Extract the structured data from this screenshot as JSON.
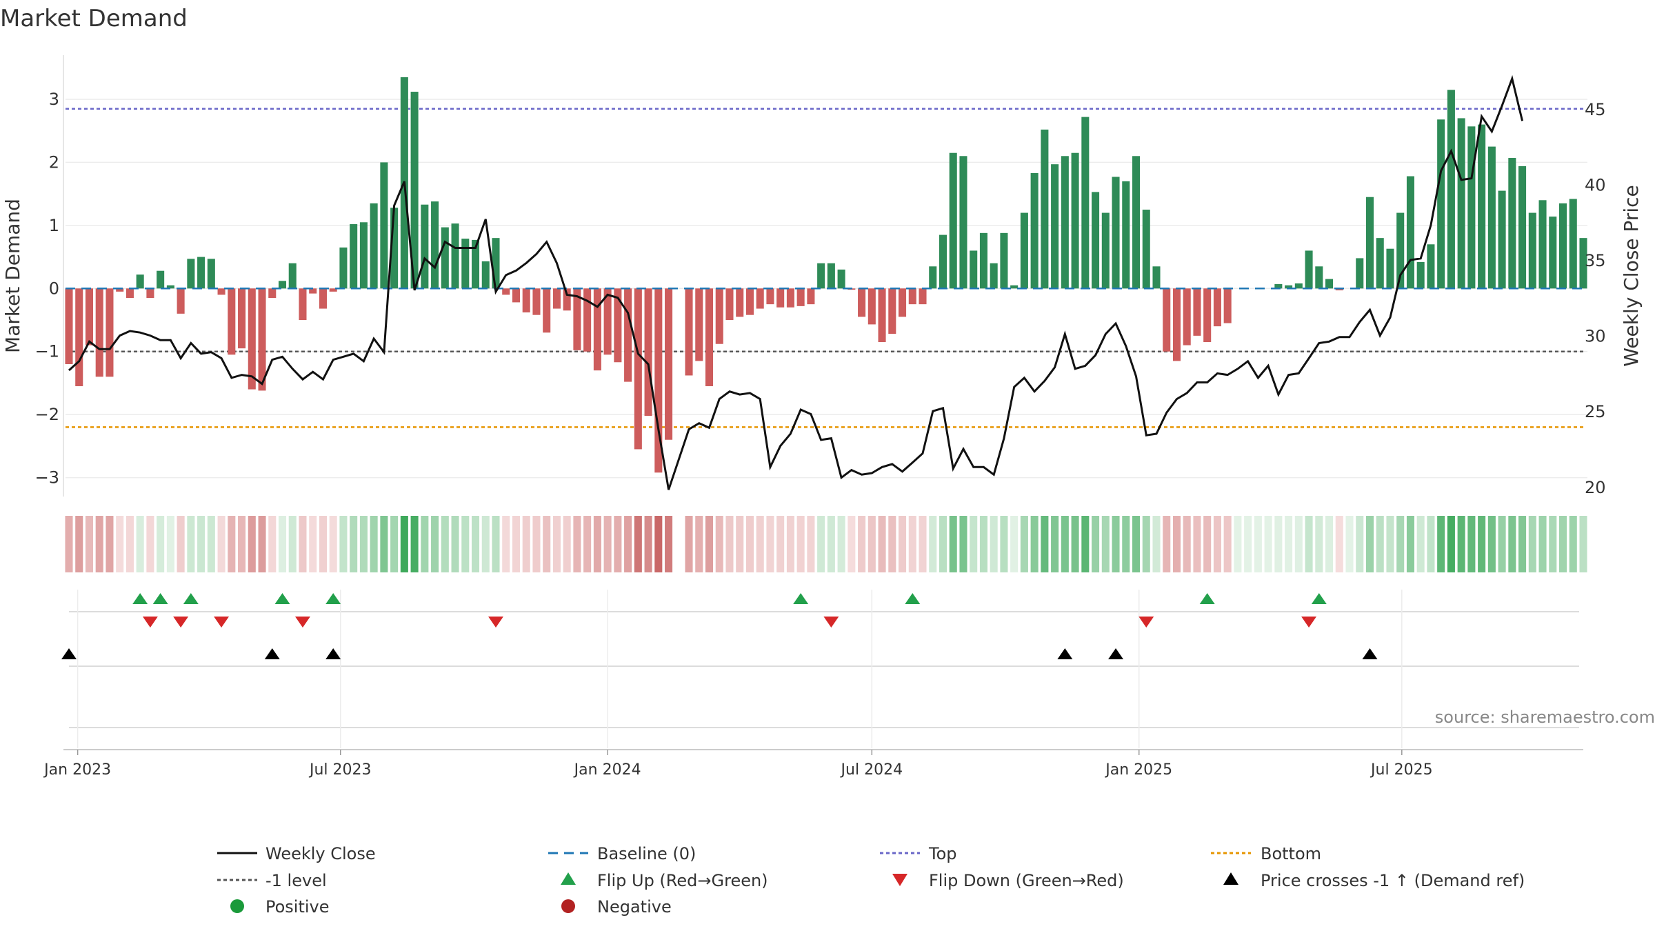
{
  "title": "Market Demand",
  "source": "source: sharemaestro.com",
  "colors": {
    "positive": "#2e8b57",
    "negative": "#cd5c5c",
    "close": "#111111",
    "baseline": "#1f77b4",
    "top": "#6a67c8",
    "minus1": "#555555",
    "bottom": "#e69500",
    "flip_up": "#22a04b",
    "flip_down": "#d62728",
    "cross": "#000000",
    "legend_positive": "#1a9a3a",
    "legend_negative": "#b22222"
  },
  "chart_data": {
    "type": "bar",
    "title": "Market Demand",
    "ylabel": "Market Demand",
    "y2label": "Weekly Close Price",
    "ylim": [
      -3.3,
      3.7
    ],
    "y2lim": [
      19.35,
      48.55
    ],
    "yticks": [
      3,
      2,
      1,
      0,
      -1,
      -2,
      -3
    ],
    "y2ticks": [
      45,
      40,
      35,
      30,
      25,
      20
    ],
    "x_start": "2022-12-26",
    "x_step_days": 7,
    "xticks": [
      {
        "label": "Jan 2023",
        "date": "2023-01-01"
      },
      {
        "label": "Jul 2023",
        "date": "2023-07-01"
      },
      {
        "label": "Jan 2024",
        "date": "2024-01-01"
      },
      {
        "label": "Jul 2024",
        "date": "2024-07-01"
      },
      {
        "label": "Jan 2025",
        "date": "2025-01-01"
      },
      {
        "label": "Jul 2025",
        "date": "2025-07-01"
      }
    ],
    "levels": {
      "baseline": 0,
      "top": 2.85,
      "minus1": -1,
      "bottom": -2.2
    },
    "demand": [
      -1.2,
      -1.55,
      -0.9,
      -1.4,
      -1.4,
      -0.05,
      -0.15,
      0.22,
      -0.15,
      0.28,
      0.05,
      -0.4,
      0.47,
      0.5,
      0.47,
      -0.1,
      -1.05,
      -0.95,
      -1.6,
      -1.62,
      -0.15,
      0.12,
      0.4,
      -0.5,
      -0.08,
      -0.32,
      -0.05,
      0.65,
      1.02,
      1.05,
      1.35,
      2.0,
      1.28,
      3.35,
      3.12,
      1.33,
      1.38,
      0.97,
      1.03,
      0.79,
      0.77,
      0.43,
      0.8,
      -0.1,
      -0.22,
      -0.38,
      -0.42,
      -0.7,
      -0.32,
      -0.35,
      -0.98,
      -1.0,
      -1.3,
      -1.05,
      -1.17,
      -1.48,
      -2.55,
      -2.02,
      -2.92,
      -2.4,
      null,
      -1.38,
      -1.15,
      -1.55,
      -0.88,
      -0.5,
      -0.45,
      -0.42,
      -0.32,
      -0.25,
      -0.3,
      -0.3,
      -0.28,
      -0.25,
      0.4,
      0.4,
      0.3,
      -0.02,
      -0.45,
      -0.57,
      -0.85,
      -0.72,
      -0.45,
      -0.25,
      -0.25,
      0.35,
      0.85,
      2.15,
      2.1,
      0.6,
      0.88,
      0.4,
      0.88,
      0.05,
      1.2,
      1.83,
      2.52,
      1.97,
      2.1,
      2.15,
      2.72,
      1.53,
      1.2,
      1.77,
      1.7,
      2.1,
      1.25,
      0.35,
      -1.0,
      -1.15,
      -0.9,
      -0.75,
      -0.85,
      -0.6,
      -0.55,
      0,
      0,
      0,
      0,
      0.07,
      0.05,
      0.08,
      0.6,
      0.35,
      0.15,
      -0.03,
      0,
      0.48,
      1.45,
      0.8,
      0.63,
      1.2,
      1.78,
      0.42,
      0.7,
      2.68,
      3.15,
      2.7,
      2.57,
      2.6,
      2.25,
      1.55,
      2.07,
      1.94,
      1.2,
      1.4,
      1.14,
      1.35,
      1.42,
      0.8
    ],
    "close": [
      27.7,
      28.3,
      29.6,
      29.1,
      29.1,
      30.0,
      30.3,
      30.2,
      30.0,
      29.7,
      29.7,
      28.5,
      29.5,
      28.8,
      28.9,
      28.5,
      27.2,
      27.4,
      27.3,
      26.8,
      28.4,
      28.6,
      27.8,
      27.1,
      27.6,
      27.1,
      28.4,
      28.6,
      28.8,
      28.3,
      29.8,
      28.9,
      38.6,
      40.2,
      33.0,
      35.1,
      34.5,
      36.2,
      35.8,
      35.8,
      35.8,
      37.7,
      32.9,
      34.0,
      34.3,
      34.8,
      35.4,
      36.2,
      34.8,
      32.7,
      32.6,
      32.3,
      31.9,
      32.7,
      32.5,
      31.5,
      28.8,
      28.1,
      23.8,
      19.8,
      21.8,
      23.8,
      24.2,
      23.9,
      25.8,
      26.3,
      26.1,
      26.2,
      25.8,
      21.3,
      22.7,
      23.5,
      25.1,
      24.8,
      23.1,
      23.2,
      20.6,
      21.1,
      20.8,
      20.9,
      21.3,
      21.5,
      21.0,
      21.6,
      22.2,
      25.0,
      25.2,
      21.2,
      22.5,
      21.3,
      21.3,
      20.8,
      23.2,
      26.6,
      27.2,
      26.3,
      27.0,
      27.9,
      30.1,
      27.8,
      28.0,
      28.7,
      30.1,
      30.8,
      29.3,
      27.3,
      23.4,
      23.5,
      24.9,
      25.8,
      26.2,
      26.9,
      26.9,
      27.5,
      27.4,
      27.8,
      28.3,
      27.2,
      28.0,
      26.1,
      27.4,
      27.5,
      28.5,
      29.5,
      29.6,
      29.9,
      29.9,
      30.9,
      31.7,
      30.0,
      31.2,
      34.0,
      35.0,
      35.1,
      37.3,
      40.9,
      42.2,
      40.3,
      40.4,
      44.5,
      43.5,
      45.2,
      47.0,
      44.2
    ],
    "flip_up": [
      7,
      9,
      12,
      21,
      26,
      72,
      83,
      112,
      123
    ],
    "flip_down": [
      8,
      11,
      15,
      23,
      42,
      75,
      106,
      122
    ],
    "crosses": [
      0,
      20,
      26,
      98,
      103,
      128
    ],
    "legend": [
      {
        "label": "Weekly Close",
        "icon": "solid-line"
      },
      {
        "label": "Baseline (0)",
        "icon": "dashed-line"
      },
      {
        "label": "Top",
        "icon": "dotted-line"
      },
      {
        "label": "Bottom",
        "icon": "dotted-line"
      },
      {
        "label": "-1 level",
        "icon": "dotted-line"
      },
      {
        "label": "Flip Up (Red→Green)",
        "icon": "triangle-up"
      },
      {
        "label": "Flip Down (Green→Red)",
        "icon": "triangle-down"
      },
      {
        "label": "Price crosses -1 ↑ (Demand ref)",
        "icon": "triangle-up"
      },
      {
        "label": "Positive",
        "icon": "circle"
      },
      {
        "label": "Negative",
        "icon": "circle"
      }
    ]
  }
}
